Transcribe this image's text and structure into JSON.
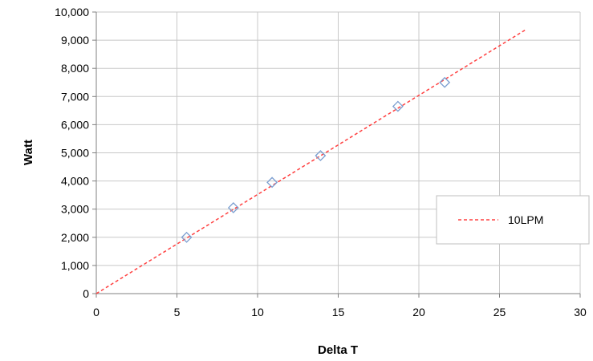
{
  "chart_data": {
    "type": "scatter",
    "title": "",
    "xlabel": "Delta T",
    "ylabel": "Watt",
    "xlim": [
      0,
      30
    ],
    "ylim": [
      0,
      10000
    ],
    "xticks": [
      0,
      5,
      10,
      15,
      20,
      25,
      30
    ],
    "xtick_labels": [
      "0",
      "5",
      "10",
      "15",
      "20",
      "25",
      "30"
    ],
    "yticks": [
      0,
      1000,
      2000,
      3000,
      4000,
      5000,
      6000,
      7000,
      8000,
      9000,
      10000
    ],
    "ytick_labels": [
      "0",
      "1,000",
      "2,000",
      "3,000",
      "4,000",
      "5,000",
      "6,000",
      "7,000",
      "8,000",
      "9,000",
      "10,000"
    ],
    "grid": true,
    "legend_position": "right",
    "series": [
      {
        "kind": "scatter",
        "marker": "diamond",
        "color": "#7b9ed0",
        "x": [
          5.6,
          8.5,
          10.9,
          13.9,
          18.7,
          21.6
        ],
        "y": [
          2000,
          3050,
          3950,
          4900,
          6650,
          7500
        ]
      },
      {
        "kind": "trendline",
        "name": "10LPM",
        "style": "dashed",
        "color": "#ff4040",
        "x": [
          0,
          26.7
        ],
        "y": [
          0,
          9400
        ]
      }
    ]
  }
}
